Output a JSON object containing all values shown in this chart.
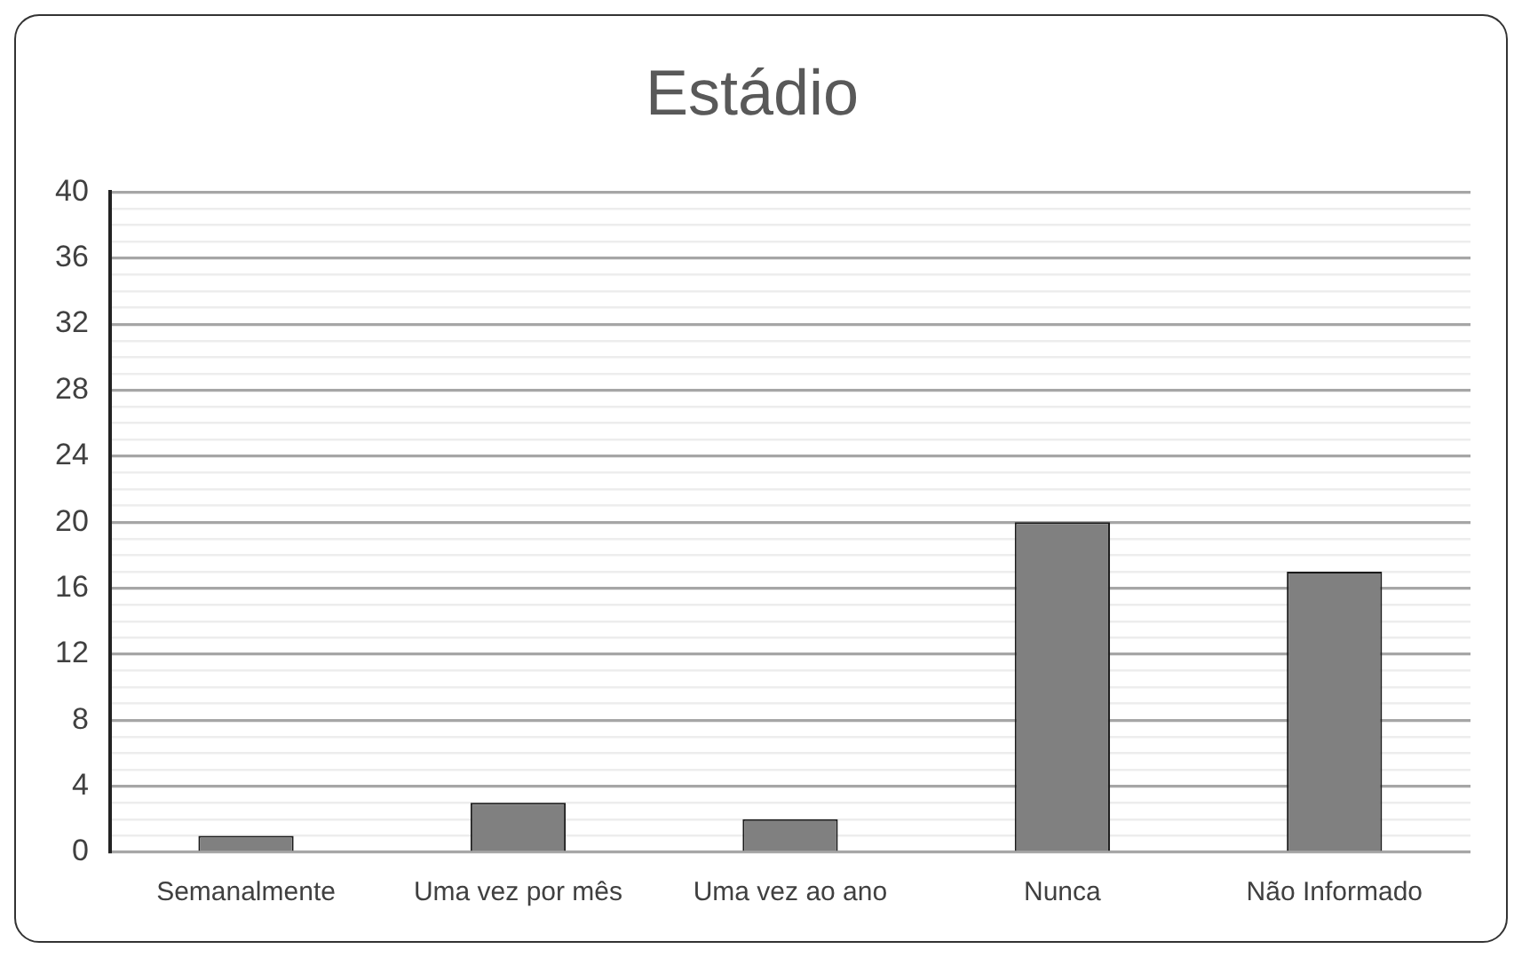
{
  "chart_data": {
    "type": "bar",
    "title": "Estádio",
    "categories": [
      "Semanalmente",
      "Uma vez por mês",
      "Uma vez ao ano",
      "Nunca",
      "Não Informado"
    ],
    "values": [
      1,
      3,
      2,
      20,
      17
    ],
    "color": "#808080",
    "ylim": [
      0,
      40
    ],
    "yticks": [
      0,
      {
        "value": 1,
        "label": null
      },
      {
        "value": 2,
        "label": null
      },
      {
        "value": 3,
        "label": null
      },
      4,
      {
        "value": 5,
        "label": null
      },
      {
        "value": 6,
        "label": null
      },
      {
        "value": 7,
        "label": null
      },
      8,
      {
        "value": 9,
        "label": null
      },
      {
        "value": 10,
        "label": null
      },
      {
        "value": 11,
        "label": null
      },
      12,
      {
        "value": 13,
        "label": null
      },
      {
        "value": 14,
        "label": null
      },
      {
        "value": 15,
        "label": null
      },
      16,
      {
        "value": 17,
        "label": null
      },
      {
        "value": 18,
        "label": null
      },
      {
        "value": 19,
        "label": null
      },
      20,
      {
        "value": 21,
        "label": null
      },
      {
        "value": 22,
        "label": null
      },
      {
        "value": 23,
        "label": null
      },
      24,
      {
        "value": 25,
        "label": null
      },
      {
        "value": 26,
        "label": null
      },
      {
        "value": 27,
        "label": null
      },
      28,
      {
        "value": 29,
        "label": null
      },
      {
        "value": 30,
        "label": null
      },
      {
        "value": 31,
        "label": null
      },
      32,
      {
        "value": 33,
        "label": null
      },
      {
        "value": 34,
        "label": null
      },
      {
        "value": 35,
        "label": null
      },
      36,
      {
        "value": 37,
        "label": null
      },
      {
        "value": 38,
        "label": null
      },
      {
        "value": 39,
        "label": null
      },
      40
    ],
    "grid": "y",
    "legend": false
  }
}
